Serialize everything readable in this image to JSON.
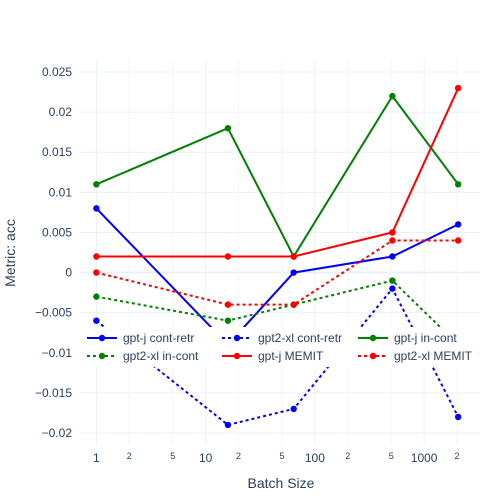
{
  "chart_data": {
    "type": "line",
    "title": "",
    "xlabel": "Batch Size",
    "ylabel": "Metric: acc",
    "x_scale": "log",
    "x_major_ticks": [
      {
        "value": 1,
        "label": "1"
      },
      {
        "value": 10,
        "label": "10"
      },
      {
        "value": 100,
        "label": "100"
      },
      {
        "value": 1000,
        "label": "1000"
      }
    ],
    "x_minor_ticks": [
      {
        "value": 2,
        "label": "2"
      },
      {
        "value": 5,
        "label": "5"
      },
      {
        "value": 20,
        "label": "2"
      },
      {
        "value": 50,
        "label": "5"
      },
      {
        "value": 200,
        "label": "2"
      },
      {
        "value": 500,
        "label": "5"
      },
      {
        "value": 2000,
        "label": "2"
      }
    ],
    "ylim": [
      -0.0215,
      0.0265
    ],
    "y_ticks": [
      {
        "value": 0.025,
        "label": "0.025"
      },
      {
        "value": 0.02,
        "label": "0.02"
      },
      {
        "value": 0.015,
        "label": "0.015"
      },
      {
        "value": 0.01,
        "label": "0.01"
      },
      {
        "value": 0.005,
        "label": "0.005"
      },
      {
        "value": 0,
        "label": "0"
      },
      {
        "value": -0.005,
        "label": "−0.005"
      },
      {
        "value": -0.01,
        "label": "−0.01"
      },
      {
        "value": -0.015,
        "label": "−0.015"
      },
      {
        "value": -0.02,
        "label": "−0.02"
      }
    ],
    "grid": true,
    "legend_position": "bottom-right inside",
    "x": [
      1,
      16,
      64,
      512,
      2048
    ],
    "series": [
      {
        "name": "gpt-j cont-retr",
        "color": "#0000ff",
        "dash": "solid",
        "values": [
          0.008,
          -0.009,
          0.0,
          0.002,
          0.006
        ]
      },
      {
        "name": "gpt2-xl cont-retr",
        "color": "#0000ff",
        "dash": "dot",
        "values": [
          -0.006,
          -0.019,
          -0.017,
          -0.002,
          -0.018
        ]
      },
      {
        "name": "gpt-j in-cont",
        "color": "#008000",
        "dash": "solid",
        "values": [
          0.011,
          0.018,
          0.002,
          0.022,
          0.011
        ]
      },
      {
        "name": "gpt2-xl in-cont",
        "color": "#008000",
        "dash": "dot",
        "values": [
          -0.003,
          -0.006,
          -0.004,
          -0.001,
          -0.009
        ]
      },
      {
        "name": "gpt-j MEMIT",
        "color": "#ff0000",
        "dash": "solid",
        "values": [
          0.002,
          0.002,
          0.002,
          0.005,
          0.023
        ]
      },
      {
        "name": "gpt2-xl MEMIT",
        "color": "#ff0000",
        "dash": "dot",
        "values": [
          0.0,
          -0.004,
          -0.004,
          0.004,
          0.004
        ]
      }
    ]
  }
}
